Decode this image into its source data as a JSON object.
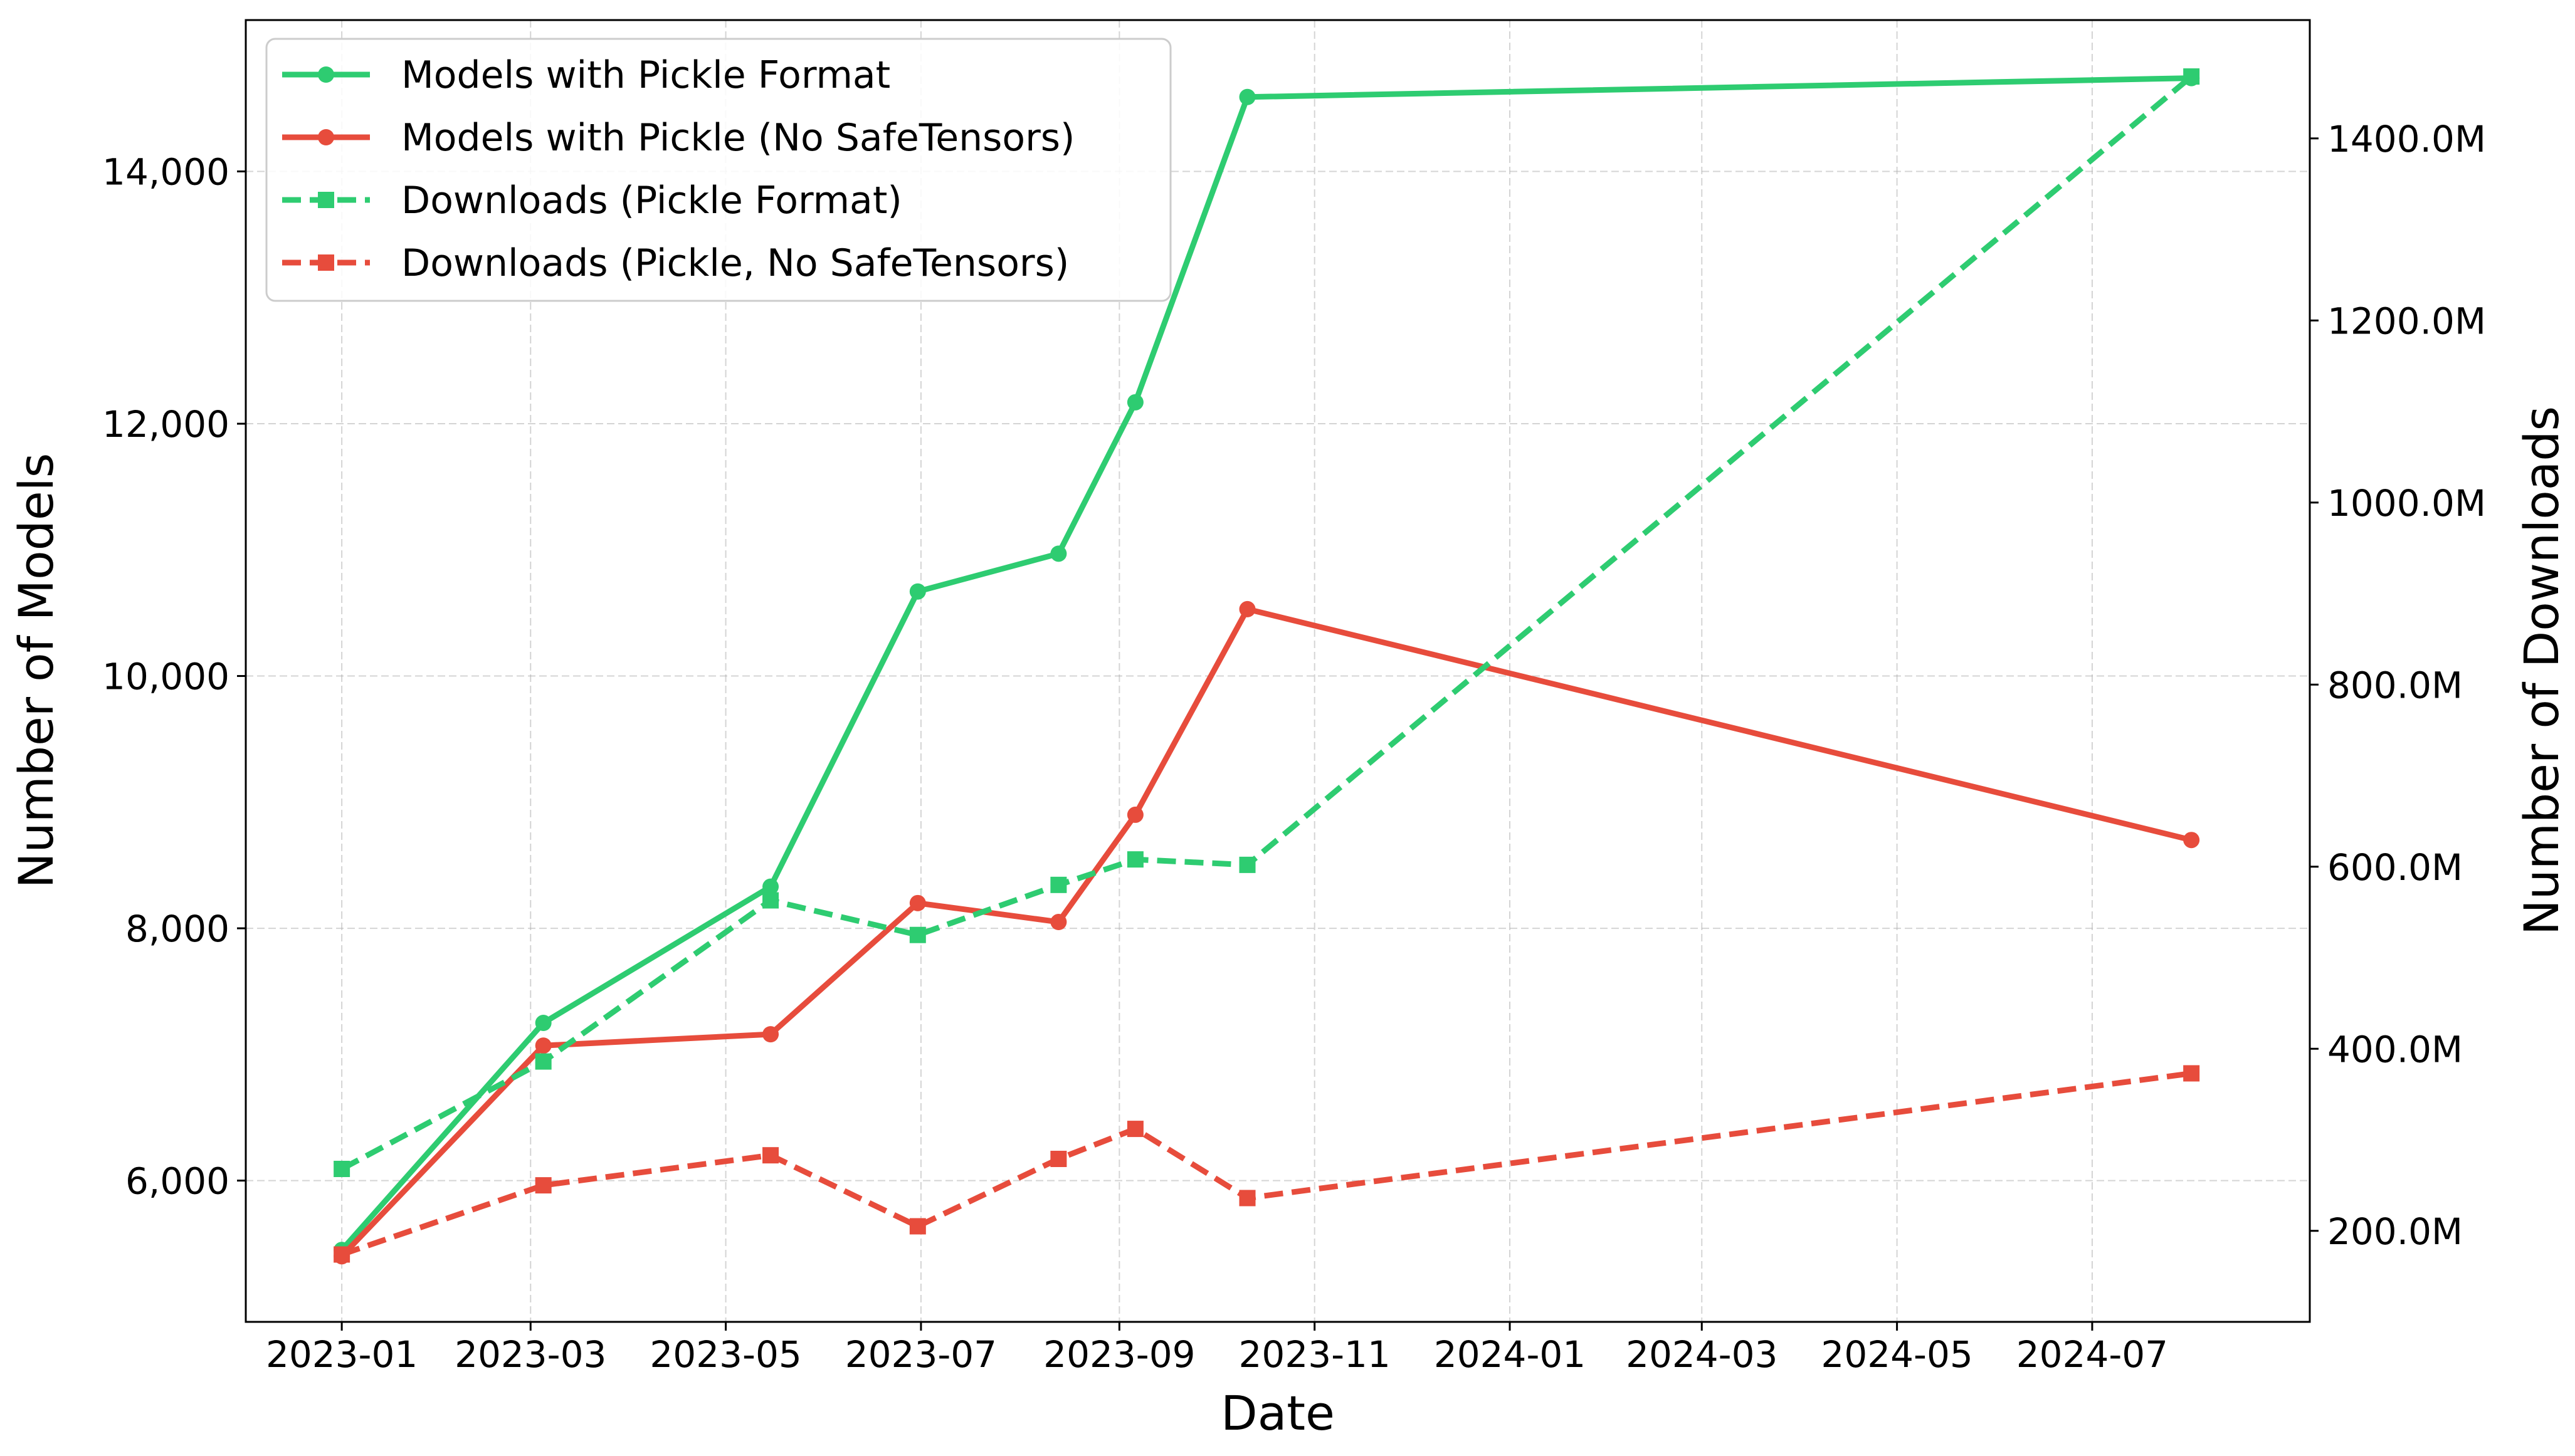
{
  "chart_data": {
    "type": "line",
    "xlabel": "Date",
    "ylabel": "Number of Models",
    "y2label": "Number of Downloads",
    "x_tick_labels": [
      "2023-01",
      "2023-03",
      "2023-05",
      "2023-07",
      "2023-09",
      "2023-11",
      "2024-01",
      "2024-03",
      "2024-05",
      "2024-07"
    ],
    "y_tick_labels": [
      "6,000",
      "8,000",
      "10,000",
      "12,000",
      "14,000"
    ],
    "y2_tick_labels": [
      "200.0M",
      "400.0M",
      "600.0M",
      "800.0M",
      "1000.0M",
      "1200.0M",
      "1400.0M"
    ],
    "xlim": [
      "2022-12-02",
      "2024-09-07"
    ],
    "ylim": [
      4880,
      15200
    ],
    "y2lim": [
      100,
      1530
    ],
    "grid": true,
    "legend_position": "top-left",
    "dates": [
      "2023-01-01",
      "2023-03-05",
      "2023-05-15",
      "2023-06-30",
      "2023-08-13",
      "2023-09-06",
      "2023-10-11",
      "2024-08-01"
    ],
    "series": [
      {
        "name": "Models with Pickle Format",
        "axis": "left",
        "style": "solid",
        "marker": "circle",
        "color": "#2ecc71",
        "values": [
          5450,
          7250,
          8330,
          10670,
          10970,
          12170,
          14590,
          14740
        ]
      },
      {
        "name": "Models with Pickle (No SafeTensors)",
        "axis": "left",
        "style": "solid",
        "marker": "circle",
        "color": "#e74c3c",
        "values": [
          5400,
          7070,
          7160,
          8200,
          8050,
          8900,
          10530,
          8700
        ]
      },
      {
        "name": "Downloads (Pickle Format)",
        "axis": "right",
        "style": "dashed",
        "marker": "square",
        "color": "#2ecc71",
        "values": [
          268,
          386,
          563,
          525,
          580,
          608,
          602,
          1468
        ]
      },
      {
        "name": "Downloads (Pickle, No SafeTensors)",
        "axis": "right",
        "style": "dashed",
        "marker": "square",
        "color": "#e74c3c",
        "values": [
          174,
          250,
          283,
          205,
          279,
          312,
          236,
          373
        ]
      }
    ]
  }
}
